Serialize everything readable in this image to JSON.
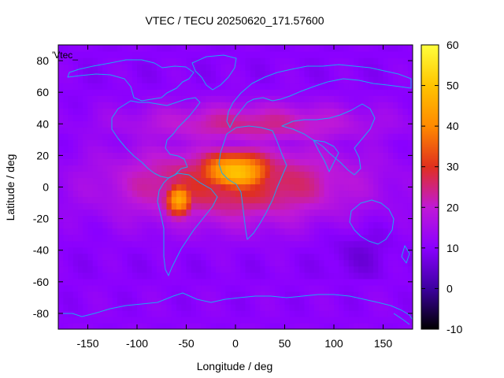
{
  "chart_data": {
    "type": "heatmap",
    "title": "VTEC / TECU 20250620_171.57600",
    "xlabel": "Longitude / deg",
    "ylabel": "Latitude / deg",
    "xlim": [
      -180,
      180
    ],
    "ylim": [
      -90,
      90
    ],
    "x_ticks": [
      -150,
      -100,
      -50,
      0,
      50,
      100,
      150
    ],
    "y_ticks": [
      -80,
      -60,
      -40,
      -20,
      0,
      20,
      40,
      60,
      80
    ],
    "colorbar": {
      "range": [
        -10,
        60
      ],
      "ticks": [
        -10,
        0,
        10,
        20,
        30,
        40,
        50,
        60
      ],
      "palette": [
        "#000000",
        "#3d00a0",
        "#8a00ff",
        "#c019d6",
        "#e0301e",
        "#ff8a00",
        "#ffc400",
        "#ffff3c"
      ]
    },
    "legend_label": "'Vtec_",
    "overlay": "coastlines",
    "overlay_color": "#1ea8f0",
    "value_regions": [
      {
        "name": "background",
        "value": 10
      },
      {
        "name": "northern-mid-latitudes",
        "lon": [
          -120,
          150
        ],
        "lat": [
          25,
          55
        ],
        "value": 24
      },
      {
        "name": "equatorial-band",
        "lon": [
          -140,
          135
        ],
        "lat": [
          -25,
          30
        ],
        "value": 30
      },
      {
        "name": "africa-atlantic-peak",
        "lon": [
          -45,
          45
        ],
        "lat": [
          -5,
          25
        ],
        "value": 50
      },
      {
        "name": "south-america-peak",
        "lon": [
          -75,
          -40
        ],
        "lat": [
          -20,
          5
        ],
        "value": 46
      },
      {
        "name": "southern-pacific-low",
        "lon": [
          90,
          160
        ],
        "lat": [
          -60,
          -25
        ],
        "value": 6
      },
      {
        "name": "polar-south",
        "lat": [
          -90,
          -60
        ],
        "value": 11
      }
    ]
  }
}
